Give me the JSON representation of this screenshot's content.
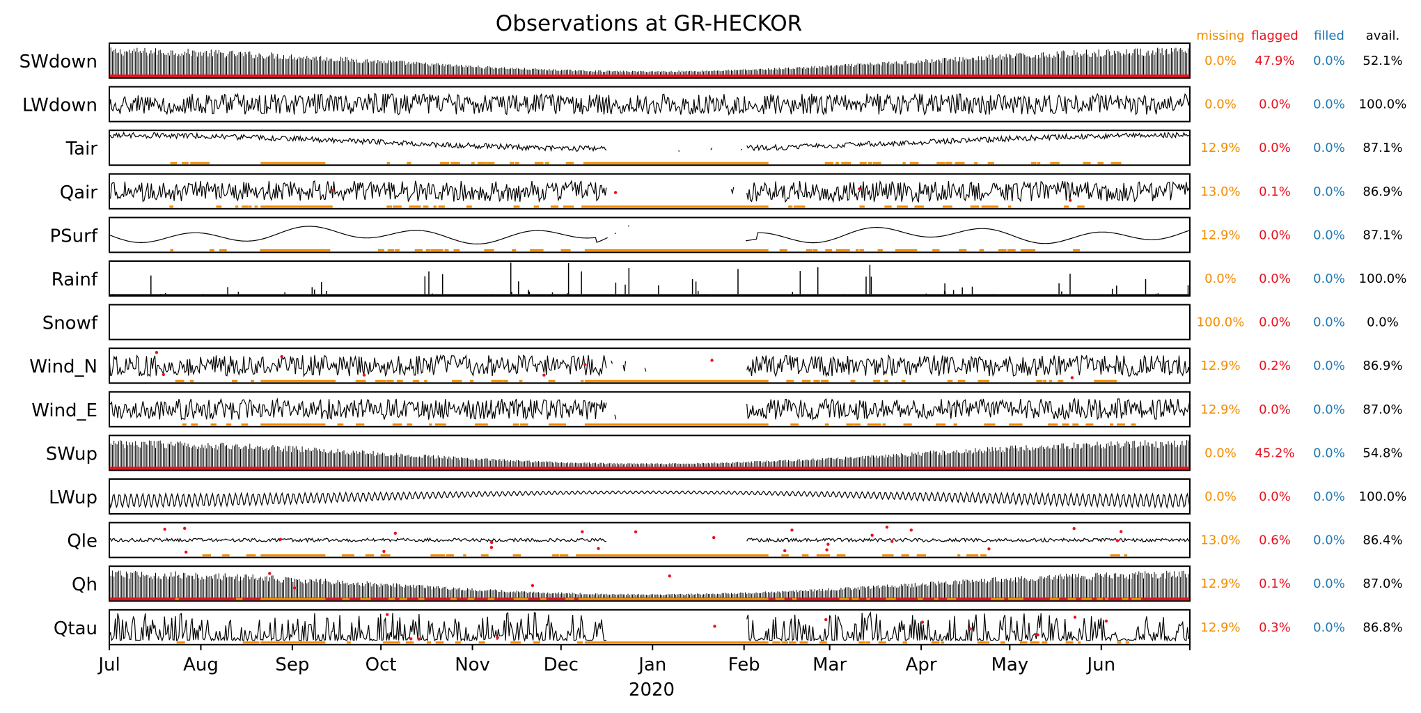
{
  "chart_data": {
    "type": "line",
    "title": "Observations at GR-HECKOR",
    "x_range": [
      "2019-07-01",
      "2020-06-30"
    ],
    "x_ticks": [
      "Jul",
      "Aug",
      "Sep",
      "Oct",
      "Nov",
      "Dec",
      "Jan",
      "Feb",
      "Mar",
      "Apr",
      "May",
      "Jun"
    ],
    "x_year_label": "2020",
    "stats_headers": {
      "missing": "missing",
      "flagged": "flagged",
      "filled": "filled",
      "avail": "avail."
    },
    "colors": {
      "missing": "#f28c00",
      "flagged": "#e8111e",
      "filled": "#1f77b4",
      "avail": "#000000",
      "series": "#000000"
    },
    "series": [
      {
        "name": "SWdown",
        "missing": "0.0%",
        "flagged": "47.9%",
        "filled": "0.0%",
        "avail": "52.1%",
        "style": "diurnal"
      },
      {
        "name": "LWdown",
        "missing": "0.0%",
        "flagged": "0.0%",
        "filled": "0.0%",
        "avail": "100.0%",
        "style": "noisy"
      },
      {
        "name": "Tair",
        "missing": "12.9%",
        "flagged": "0.0%",
        "filled": "0.0%",
        "avail": "87.1%",
        "style": "seasonal"
      },
      {
        "name": "Qair",
        "missing": "13.0%",
        "flagged": "0.1%",
        "filled": "0.0%",
        "avail": "86.9%",
        "style": "noisy"
      },
      {
        "name": "PSurf",
        "missing": "12.9%",
        "flagged": "0.0%",
        "filled": "0.0%",
        "avail": "87.1%",
        "style": "smooth"
      },
      {
        "name": "Rainf",
        "missing": "0.0%",
        "flagged": "0.0%",
        "filled": "0.0%",
        "avail": "100.0%",
        "style": "spikes"
      },
      {
        "name": "Snowf",
        "missing": "100.0%",
        "flagged": "0.0%",
        "filled": "0.0%",
        "avail": "0.0%",
        "style": "none"
      },
      {
        "name": "Wind_N",
        "missing": "12.9%",
        "flagged": "0.2%",
        "filled": "0.0%",
        "avail": "86.9%",
        "style": "noisy"
      },
      {
        "name": "Wind_E",
        "missing": "12.9%",
        "flagged": "0.0%",
        "filled": "0.0%",
        "avail": "87.0%",
        "style": "noisy"
      },
      {
        "name": "SWup",
        "missing": "0.0%",
        "flagged": "45.2%",
        "filled": "0.0%",
        "avail": "54.8%",
        "style": "diurnal"
      },
      {
        "name": "LWup",
        "missing": "0.0%",
        "flagged": "0.0%",
        "filled": "0.0%",
        "avail": "100.0%",
        "style": "wavy"
      },
      {
        "name": "Qle",
        "missing": "13.0%",
        "flagged": "0.6%",
        "filled": "0.0%",
        "avail": "86.4%",
        "style": "flat"
      },
      {
        "name": "Qh",
        "missing": "12.9%",
        "flagged": "0.1%",
        "filled": "0.0%",
        "avail": "87.0%",
        "style": "diurnal"
      },
      {
        "name": "Qtau",
        "missing": "12.9%",
        "flagged": "0.3%",
        "filled": "0.0%",
        "avail": "86.8%",
        "style": "bursty"
      }
    ]
  }
}
